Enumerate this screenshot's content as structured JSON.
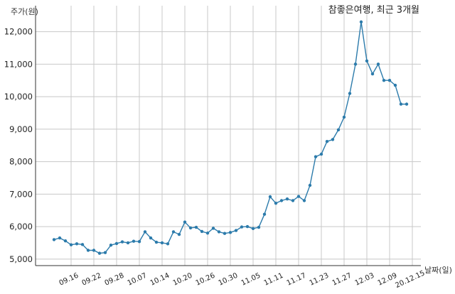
{
  "chart_data": {
    "type": "line",
    "title": "참좋은여행, 최근 3개월",
    "ylabel": "주가(원)",
    "xlabel": "날짜(일)",
    "ylim": [
      4800,
      12800
    ],
    "yticks": [
      5000,
      6000,
      7000,
      8000,
      9000,
      10000,
      11000,
      12000
    ],
    "ytick_labels": [
      "5,000",
      "6,000",
      "7,000",
      "8,000",
      "9,000",
      "10,000",
      "11,000",
      "12,000"
    ],
    "xtick_labels": [
      "09.16",
      "09.22",
      "09.28",
      "10.07",
      "10.14",
      "10.20",
      "10.26",
      "10.30",
      "11.05",
      "11.11",
      "11.17",
      "11.23",
      "11.27",
      "12.03",
      "12.09",
      "20.12.15"
    ],
    "xtick_index": [
      3,
      7,
      11,
      15,
      19,
      23,
      27,
      31,
      35,
      39,
      43,
      47,
      51,
      55,
      59,
      63
    ],
    "grid": true,
    "color": "#2c7bab",
    "series": [
      {
        "name": "",
        "values": [
          5600,
          5650,
          5560,
          5440,
          5470,
          5450,
          5270,
          5270,
          5180,
          5200,
          5430,
          5480,
          5530,
          5500,
          5550,
          5540,
          5840,
          5650,
          5520,
          5500,
          5470,
          5840,
          5760,
          6140,
          5960,
          5980,
          5850,
          5800,
          5950,
          5840,
          5790,
          5820,
          5880,
          5990,
          6000,
          5940,
          5980,
          6380,
          6920,
          6720,
          6800,
          6850,
          6800,
          6930,
          6800,
          7270,
          8150,
          8230,
          8620,
          8680,
          8980,
          9370,
          10100,
          11000,
          12300,
          11100,
          10700,
          11000,
          10500,
          10500,
          10350,
          9770,
          9770
        ]
      }
    ]
  }
}
